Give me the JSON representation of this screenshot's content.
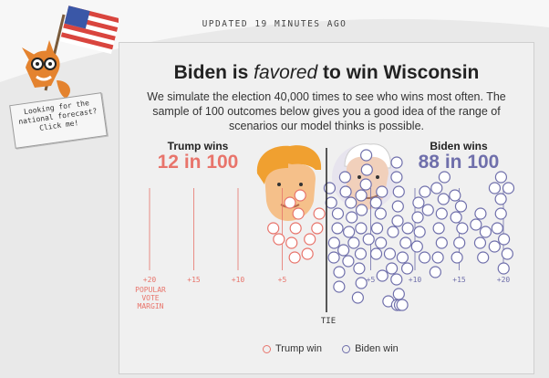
{
  "updated": "UPDATED 19 MINUTES AGO",
  "title": {
    "pre": "Biden is ",
    "em": "favored",
    "post": " to win Wisconsin"
  },
  "subtitle": "We simulate the election 40,000 times to see who wins most often. The sample of 100 outcomes below gives you a good idea of the range of scenarios our model thinks is possible.",
  "trump": {
    "label": "Trump wins",
    "count": "12 in 100",
    "color": "#e8746b"
  },
  "biden": {
    "label": "Biden wins",
    "count": "88 in 100",
    "color": "#6f6fab"
  },
  "axis": {
    "trump_ticks": [
      "+20",
      "+15",
      "+10",
      "+5"
    ],
    "biden_ticks": [
      "+5",
      "+10",
      "+15",
      "+20"
    ],
    "margin_caption": "POPULAR VOTE MARGIN",
    "tie": "TIE"
  },
  "legend": {
    "trump": "Trump win",
    "biden": "Biden win"
  },
  "callout": "Looking for the national forecast? Click me!",
  "chart_data": {
    "type": "scatter",
    "title": "",
    "description_axis": "Popular vote margin",
    "xlim": [
      -22,
      22
    ],
    "trump_outcomes": 12,
    "biden_outcomes": 88,
    "x_ticks": [
      -20,
      -15,
      -10,
      -5,
      5,
      10,
      15,
      20
    ]
  }
}
